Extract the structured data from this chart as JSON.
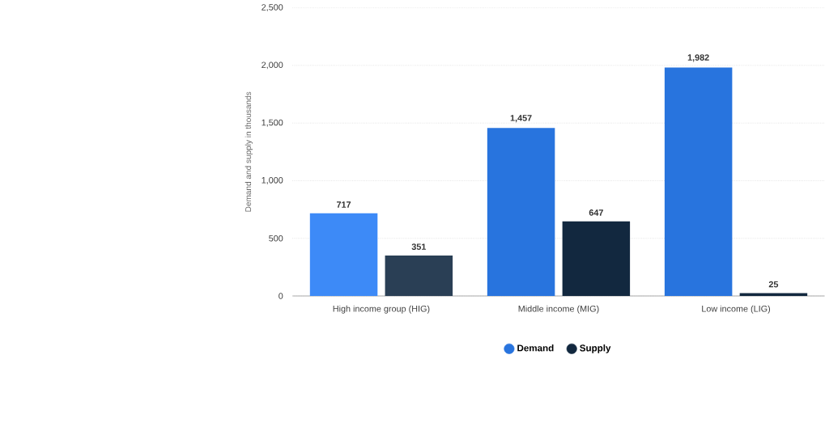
{
  "chart_data": {
    "type": "bar",
    "ylabel": "Demand and supply in thousands",
    "categories": [
      "High income group (HIG)",
      "Middle income (MIG)",
      "Low income (LIG)"
    ],
    "series": [
      {
        "name": "Demand",
        "color": "#2874de",
        "colors": [
          "#3d8af7",
          "#2874de",
          "#2874de"
        ],
        "values": [
          717,
          1457,
          1982
        ],
        "value_labels": [
          "717",
          "1,457",
          "1,982"
        ]
      },
      {
        "name": "Supply",
        "color": "#12283f",
        "colors": [
          "#2a3f55",
          "#12283f",
          "#12283f"
        ],
        "values": [
          351,
          647,
          25
        ],
        "value_labels": [
          "351",
          "647",
          "25"
        ]
      }
    ],
    "ylim": [
      0,
      2500
    ],
    "yticks": [
      0,
      500,
      {
        "value": 1000,
        "label": "1,000"
      },
      {
        "value": 1500,
        "label": "1,500"
      },
      {
        "value": 2000,
        "label": "2,000"
      },
      {
        "value": 2500,
        "label": "2,500"
      }
    ],
    "grid": "y",
    "legend": "bottom"
  }
}
